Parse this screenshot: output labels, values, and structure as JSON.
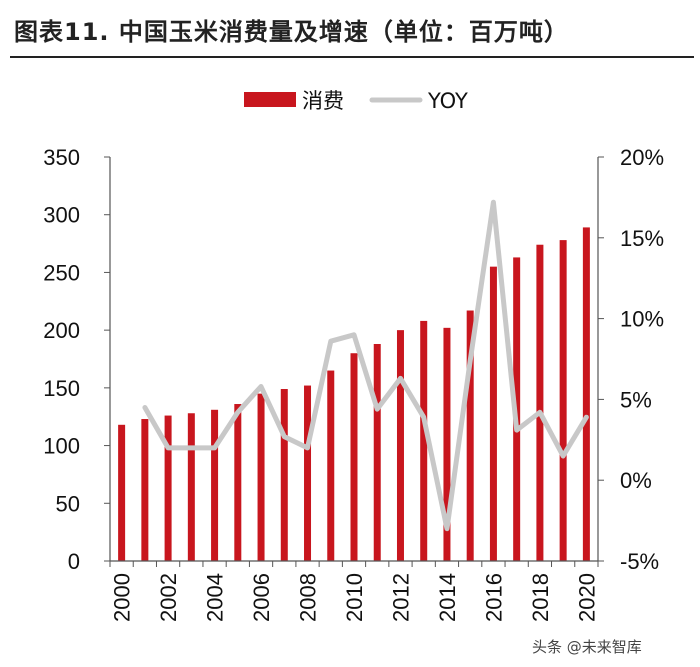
{
  "page": {
    "title": "图表11. 中国玉米消费量及增速（单位：百万吨）",
    "watermark": "头条 @未来智库"
  },
  "colors": {
    "bar": "#c8161e",
    "line": "#c8c8c8",
    "axis": "#555555",
    "text": "#111111"
  },
  "chart_data": {
    "type": "bar",
    "categories": [
      "2000",
      "2001",
      "2002",
      "2003",
      "2004",
      "2005",
      "2006",
      "2007",
      "2008",
      "2009",
      "2010",
      "2011",
      "2012",
      "2013",
      "2014",
      "2015",
      "2016",
      "2017",
      "2018",
      "2019",
      "2020"
    ],
    "x_tick_labels": [
      "2000",
      "2002",
      "2004",
      "2006",
      "2008",
      "2010",
      "2012",
      "2014",
      "2016",
      "2018",
      "2020"
    ],
    "series": [
      {
        "name": "消费",
        "kind": "bar",
        "axis": "left",
        "values": [
          118,
          123,
          126,
          128,
          131,
          136,
          145,
          149,
          152,
          165,
          180,
          188,
          200,
          208,
          202,
          217,
          255,
          263,
          274,
          278,
          289
        ]
      },
      {
        "name": "YOY",
        "kind": "line",
        "axis": "right",
        "values": [
          null,
          4.5,
          2.0,
          2.0,
          2.0,
          4.2,
          5.8,
          2.7,
          2.0,
          8.6,
          9.0,
          4.4,
          6.3,
          3.9,
          -3.0,
          7.4,
          17.2,
          3.1,
          4.2,
          1.5,
          3.9
        ]
      }
    ],
    "ylim_left": [
      0,
      350
    ],
    "yticks_left": [
      "0",
      "50",
      "100",
      "150",
      "200",
      "250",
      "300",
      "350"
    ],
    "ylim_right": [
      -5,
      20
    ],
    "yticks_right": [
      "-5%",
      "0%",
      "5%",
      "10%",
      "15%",
      "20%"
    ],
    "legend": {
      "placement": "top-center",
      "entries": [
        "消费",
        "YOY"
      ]
    },
    "grid": false
  }
}
